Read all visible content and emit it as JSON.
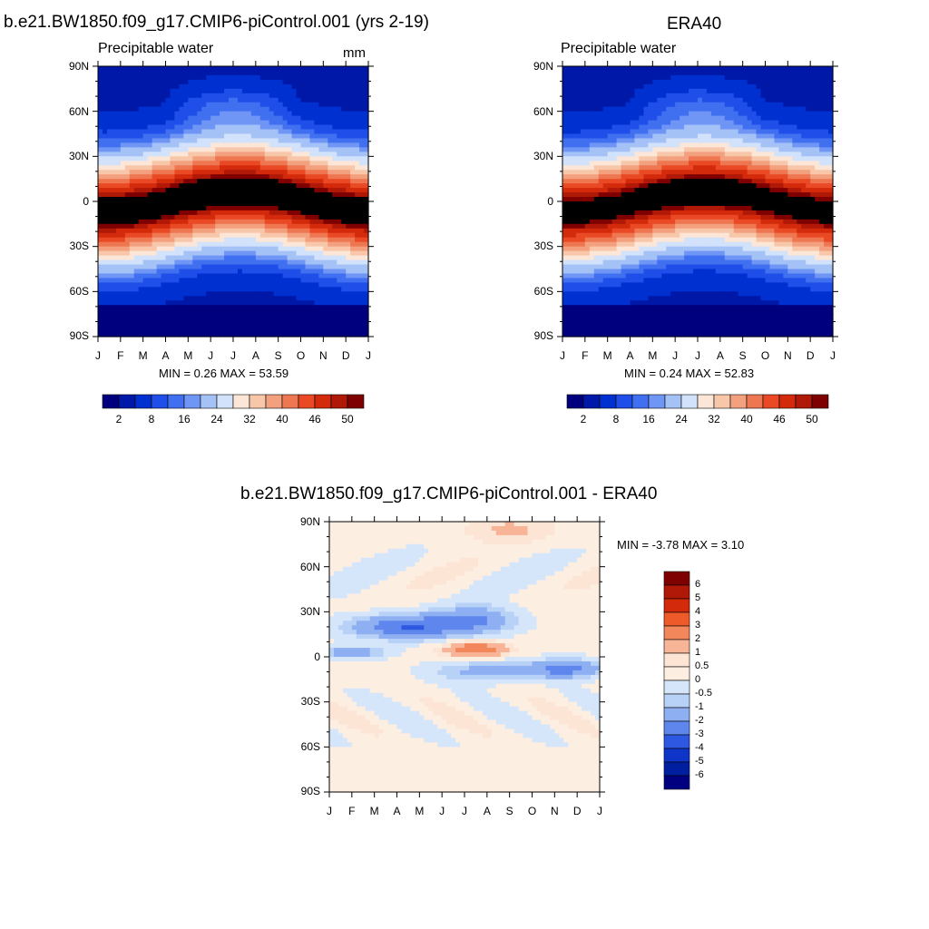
{
  "chart_data": [
    {
      "type": "heatmap",
      "title": "b.e21.BW1850.f09_g17.CMIP6-piControl.001 (yrs 2-19)",
      "subtitle": "Precipitable water",
      "units": "mm",
      "x_tick_labels": [
        "J",
        "F",
        "M",
        "A",
        "M",
        "J",
        "J",
        "A",
        "S",
        "O",
        "N",
        "D",
        "J"
      ],
      "y_tick_labels": [
        "90N",
        "60N",
        "30N",
        "0",
        "30S",
        "60S",
        "90S"
      ],
      "stats": "MIN =   0.26 MAX =   53.59",
      "colorbar_labels": [
        "2",
        "8",
        "16",
        "24",
        "32",
        "40",
        "46",
        "50"
      ],
      "levels": [
        2,
        4,
        6,
        8,
        10,
        12,
        16,
        20,
        24,
        28,
        32,
        36,
        40,
        44,
        46,
        48,
        50
      ],
      "min": 0.26,
      "max": 53.59,
      "colorbar": "horizontal"
    },
    {
      "type": "heatmap",
      "title": "ERA40",
      "subtitle": "Precipitable water",
      "units": "",
      "x_tick_labels": [
        "J",
        "F",
        "M",
        "A",
        "M",
        "J",
        "J",
        "A",
        "S",
        "O",
        "N",
        "D",
        "J"
      ],
      "y_tick_labels": [
        "90N",
        "60N",
        "30N",
        "0",
        "30S",
        "60S",
        "90S"
      ],
      "stats": "MIN =   0.24 MAX =   52.83",
      "colorbar_labels": [
        "2",
        "8",
        "16",
        "24",
        "32",
        "40",
        "46",
        "50"
      ],
      "levels": [
        2,
        4,
        6,
        8,
        10,
        12,
        16,
        20,
        24,
        28,
        32,
        36,
        40,
        44,
        46,
        48,
        50
      ],
      "min": 0.24,
      "max": 52.83,
      "colorbar": "horizontal"
    },
    {
      "type": "heatmap",
      "title": "b.e21.BW1850.f09_g17.CMIP6-piControl.001 - ERA40",
      "subtitle": "",
      "units": "",
      "x_tick_labels": [
        "J",
        "F",
        "M",
        "A",
        "M",
        "J",
        "J",
        "A",
        "S",
        "O",
        "N",
        "D",
        "J"
      ],
      "y_tick_labels": [
        "90N",
        "60N",
        "30N",
        "0",
        "30S",
        "60S",
        "90S"
      ],
      "stats": "MIN =  -3.78 MAX =    3.10",
      "colorbar_labels": [
        "6",
        "5",
        "4",
        "3",
        "2",
        "1",
        "0.5",
        "0",
        "-0.5",
        "-1",
        "-2",
        "-3",
        "-4",
        "-5",
        "-6"
      ],
      "levels": [
        -6,
        -5,
        -4,
        -3,
        -2,
        -1,
        -0.5,
        0,
        0.5,
        1,
        2,
        3,
        4,
        5,
        6
      ],
      "min": -3.78,
      "max": 3.1,
      "colorbar": "vertical"
    }
  ],
  "colors": {
    "seq": [
      "#00007f",
      "#0018a8",
      "#0030d0",
      "#1f4fe8",
      "#4070f0",
      "#6f95f5",
      "#a5c2f7",
      "#d2e2fb",
      "#fbe6d7",
      "#f8c7aa",
      "#f3a07f",
      "#ee7650",
      "#e94a25",
      "#d42a0c",
      "#b01807",
      "#7f0000"
    ],
    "div": [
      "#7f0000",
      "#b01807",
      "#d42a0c",
      "#ee5a2a",
      "#f3875c",
      "#f8b497",
      "#fde5d5",
      "#fdeee2",
      "#d6e6fa",
      "#b8d1f7",
      "#8eb0f2",
      "#5e86ec",
      "#2f58e2",
      "#0e35c7",
      "#001ea0",
      "#000080"
    ]
  }
}
